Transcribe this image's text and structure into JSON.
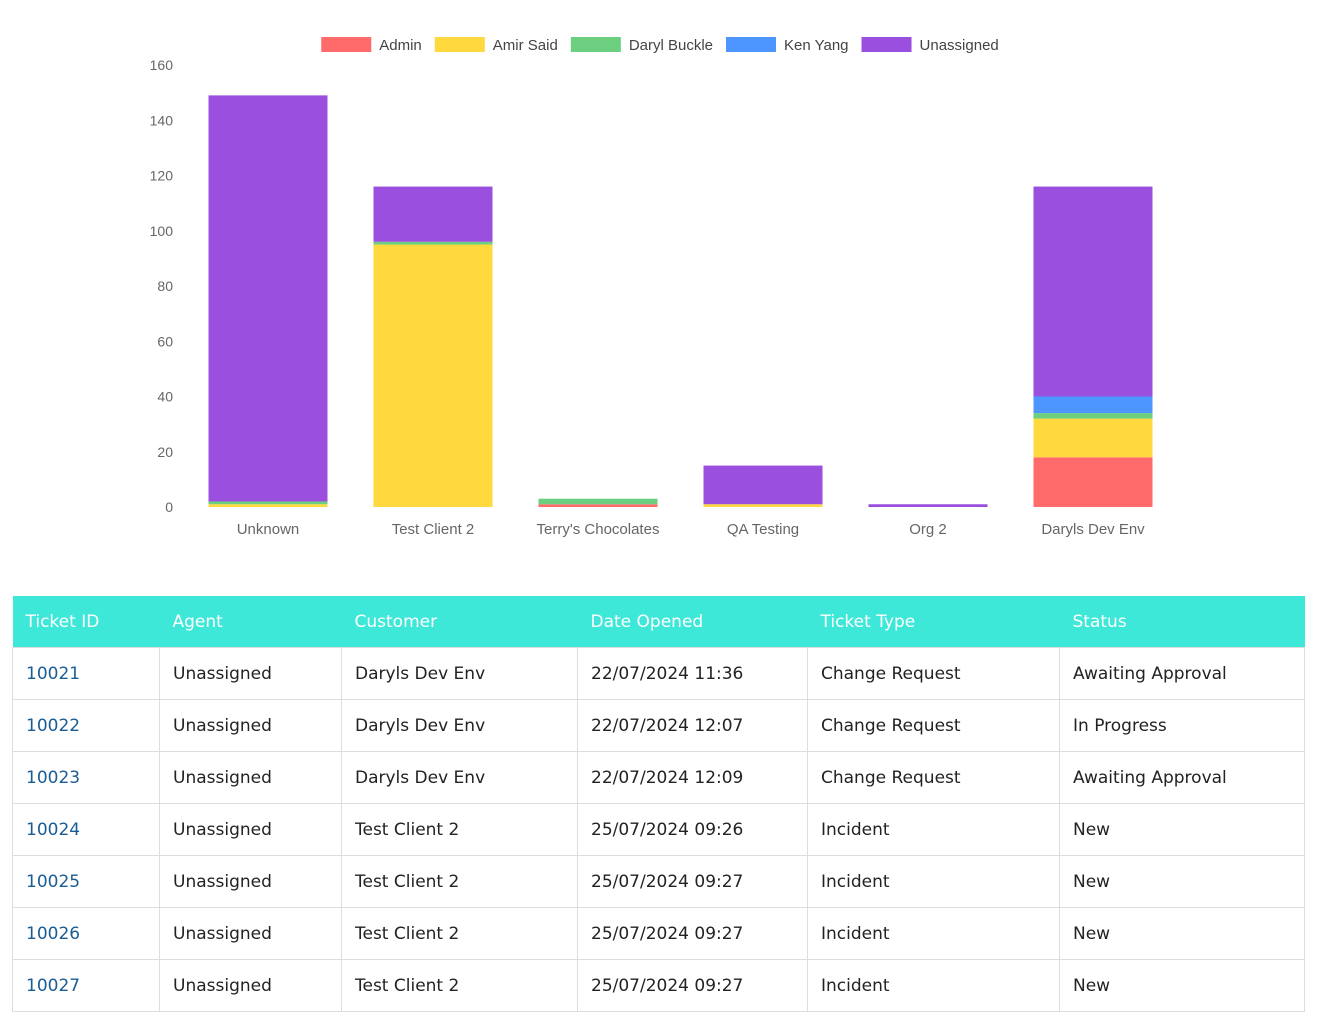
{
  "chart_data": {
    "type": "bar",
    "stacked": true,
    "categories": [
      "Unknown",
      "Test Client 2",
      "Terry's Chocolates",
      "QA Testing",
      "Org 2",
      "Daryls Dev Env"
    ],
    "series": [
      {
        "name": "Admin",
        "color": "#ff6b6b",
        "values": [
          0,
          0,
          1,
          0,
          0,
          18
        ]
      },
      {
        "name": "Amir Said",
        "color": "#ffd93d",
        "values": [
          1,
          95,
          0,
          1,
          0,
          14
        ]
      },
      {
        "name": "Daryl Buckle",
        "color": "#6bcf7f",
        "values": [
          1,
          1,
          2,
          0,
          0,
          2
        ]
      },
      {
        "name": "Ken Yang",
        "color": "#4d96ff",
        "values": [
          0,
          0,
          0,
          0,
          0,
          6
        ]
      },
      {
        "name": "Unassigned",
        "color": "#9b4fde",
        "values": [
          147,
          20,
          0,
          14,
          1,
          76
        ]
      }
    ],
    "ylim": [
      0,
      160
    ],
    "yticks": [
      0,
      20,
      40,
      60,
      80,
      100,
      120,
      140,
      160
    ],
    "legend_position": "top",
    "grid": false
  },
  "table": {
    "headers": [
      "Ticket ID",
      "Agent",
      "Customer",
      "Date Opened",
      "Ticket Type",
      "Status"
    ],
    "rows": [
      {
        "id": "10021",
        "agent": "Unassigned",
        "customer": "Daryls Dev Env",
        "date": "22/07/2024 11:36",
        "type": "Change Request",
        "status": "Awaiting Approval"
      },
      {
        "id": "10022",
        "agent": "Unassigned",
        "customer": "Daryls Dev Env",
        "date": "22/07/2024 12:07",
        "type": "Change Request",
        "status": "In Progress"
      },
      {
        "id": "10023",
        "agent": "Unassigned",
        "customer": "Daryls Dev Env",
        "date": "22/07/2024 12:09",
        "type": "Change Request",
        "status": "Awaiting Approval"
      },
      {
        "id": "10024",
        "agent": "Unassigned",
        "customer": "Test Client 2",
        "date": "25/07/2024 09:26",
        "type": "Incident",
        "status": "New"
      },
      {
        "id": "10025",
        "agent": "Unassigned",
        "customer": "Test Client 2",
        "date": "25/07/2024 09:27",
        "type": "Incident",
        "status": "New"
      },
      {
        "id": "10026",
        "agent": "Unassigned",
        "customer": "Test Client 2",
        "date": "25/07/2024 09:27",
        "type": "Incident",
        "status": "New"
      },
      {
        "id": "10027",
        "agent": "Unassigned",
        "customer": "Test Client 2",
        "date": "25/07/2024 09:27",
        "type": "Incident",
        "status": "New"
      }
    ]
  }
}
